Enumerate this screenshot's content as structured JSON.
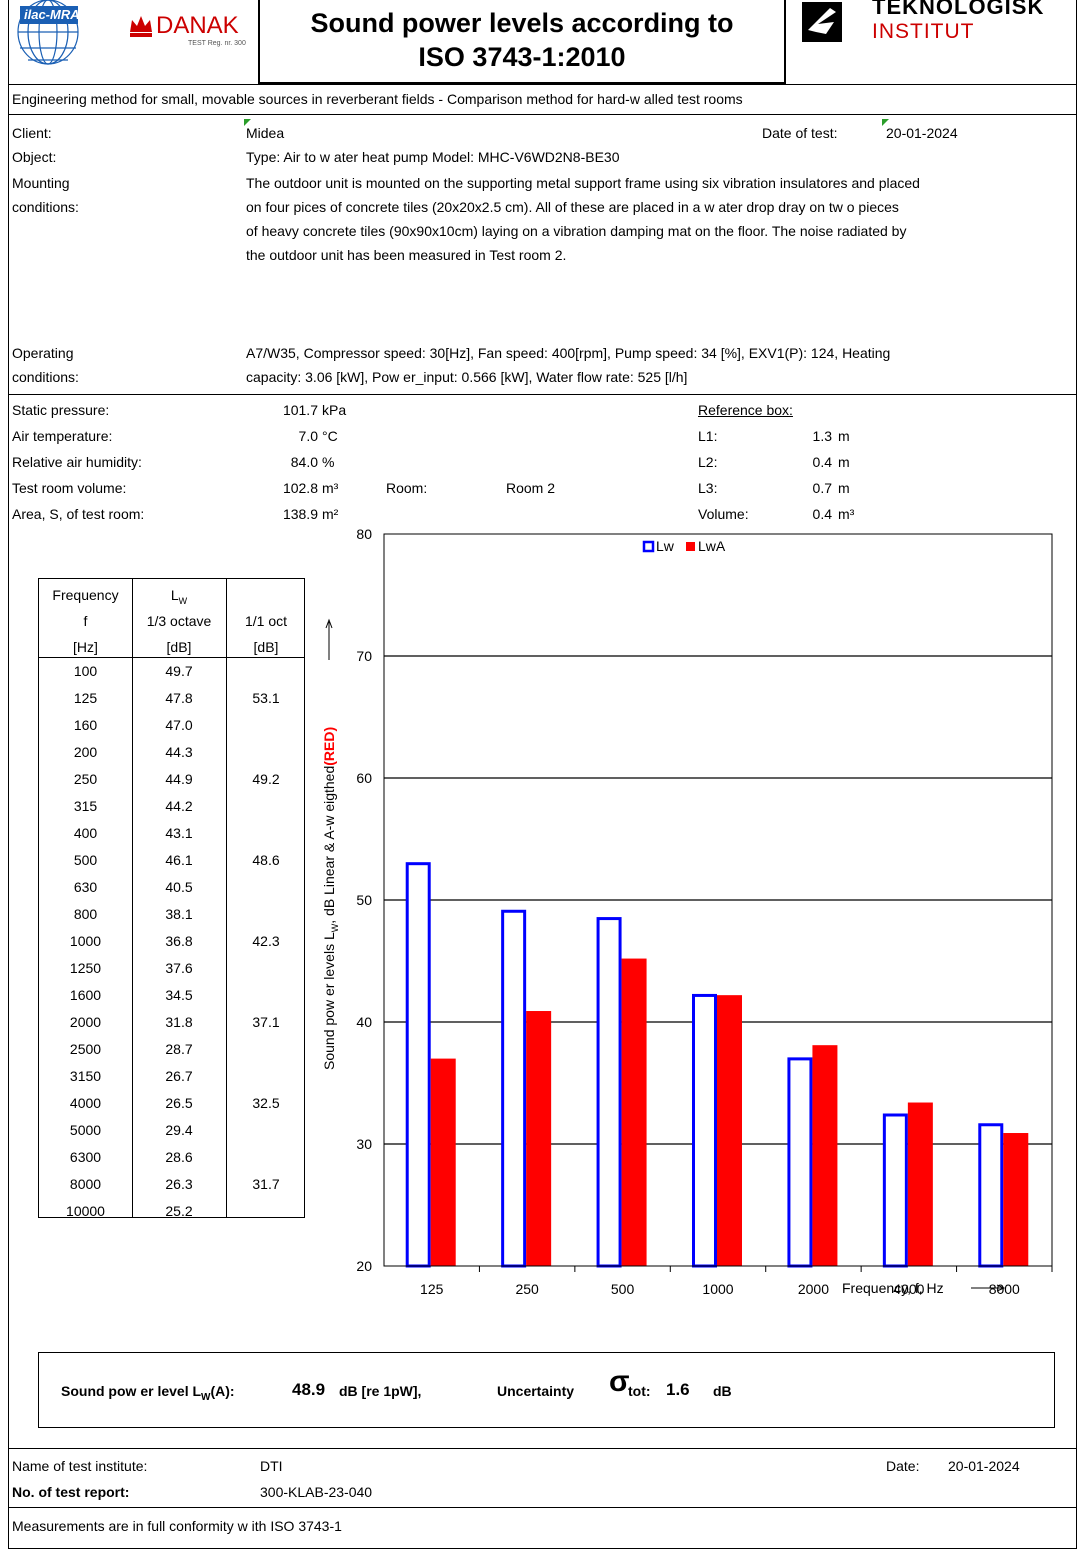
{
  "header": {
    "title_line1": "Sound power levels according to",
    "title_line2": "ISO 3743-1:2010",
    "ilac_logo": "ilac-MRA",
    "danak_logo": "DANAK",
    "danak_reg": "TEST Reg. nr. 300",
    "teknologisk_line1": "TEKNOLOGISK",
    "teknologisk_line2": "INSTITUT"
  },
  "subtitle": "Engineering method for small, movable sources in reverberant fields - Comparison method for hard-w alled test rooms",
  "client": {
    "label": "Client:",
    "value": "Midea",
    "date_label": "Date of test:",
    "date_value": "20-01-2024"
  },
  "object": {
    "label": "Object:",
    "value": "Type: Air to w ater heat pump Model: MHC-V6WD2N8-BE30"
  },
  "mounting": {
    "label1": "Mounting",
    "label2": "conditions:",
    "lines": [
      "The outdoor unit is mounted on the supporting metal support frame using six vibration insulatores and placed",
      "on four pices of concrete tiles (20x20x2.5 cm).  All of these are  placed  in a w ater drop dray on tw o pieces",
      "of heavy concrete tiles (90x90x10cm) laying on a vibration damping mat on the floor.  The noise radiated by",
      "the outdoor unit has been measured in Test room 2."
    ]
  },
  "operating": {
    "label1": "Operating",
    "label2": "conditions:",
    "lines": [
      "A7/W35, Compressor speed: 30[Hz], Fan speed: 400[rpm], Pump speed: 34 [%], EXV1(P): 124,  Heating",
      "capacity:  3.06 [kW], Pow er_input: 0.566 [kW], Water flow rate: 525 [l/h]"
    ]
  },
  "conditions": [
    {
      "label": "Static pressure:",
      "value": "101.7",
      "unit": "kPa"
    },
    {
      "label": "Air temperature:",
      "value": "7.0",
      "unit": "°C"
    },
    {
      "label": "Relative air humidity:",
      "value": "84.0",
      "unit": "%"
    },
    {
      "label": "Test room volume:",
      "value": "102.8",
      "unit": "m³"
    },
    {
      "label": "Area, S, of test room:",
      "value": "138.9",
      "unit": "m²"
    }
  ],
  "room": {
    "label": "Room:",
    "value": "Room 2"
  },
  "reference_box": {
    "title": "Reference box:",
    "rows": [
      {
        "label": "L1:",
        "value": "1.3",
        "unit": "m"
      },
      {
        "label": "L2:",
        "value": "0.4",
        "unit": "m"
      },
      {
        "label": "L3:",
        "value": "0.7",
        "unit": "m"
      },
      {
        "label": "Volume:",
        "value": "0.4",
        "unit": "m³"
      }
    ]
  },
  "table": {
    "headers": {
      "col1": [
        "Frequency",
        "f",
        "[Hz]"
      ],
      "col2_main": "L",
      "col2_sub": "W",
      "col2": [
        "1/3 octave",
        "[dB]"
      ],
      "col3": [
        "1/1 oct",
        "[dB]"
      ]
    },
    "rows": [
      {
        "f": "100",
        "third": "49.7",
        "oct": ""
      },
      {
        "f": "125",
        "third": "47.8",
        "oct": "53.1"
      },
      {
        "f": "160",
        "third": "47.0",
        "oct": ""
      },
      {
        "f": "200",
        "third": "44.3",
        "oct": ""
      },
      {
        "f": "250",
        "third": "44.9",
        "oct": "49.2"
      },
      {
        "f": "315",
        "third": "44.2",
        "oct": ""
      },
      {
        "f": "400",
        "third": "43.1",
        "oct": ""
      },
      {
        "f": "500",
        "third": "46.1",
        "oct": "48.6"
      },
      {
        "f": "630",
        "third": "40.5",
        "oct": ""
      },
      {
        "f": "800",
        "third": "38.1",
        "oct": ""
      },
      {
        "f": "1000",
        "third": "36.8",
        "oct": "42.3"
      },
      {
        "f": "1250",
        "third": "37.6",
        "oct": ""
      },
      {
        "f": "1600",
        "third": "34.5",
        "oct": ""
      },
      {
        "f": "2000",
        "third": "31.8",
        "oct": "37.1"
      },
      {
        "f": "2500",
        "third": "28.7",
        "oct": ""
      },
      {
        "f": "3150",
        "third": "26.7",
        "oct": ""
      },
      {
        "f": "4000",
        "third": "26.5",
        "oct": "32.5"
      },
      {
        "f": "5000",
        "third": "29.4",
        "oct": ""
      },
      {
        "f": "6300",
        "third": "28.6",
        "oct": ""
      },
      {
        "f": "8000",
        "third": "26.3",
        "oct": "31.7"
      },
      {
        "f": "10000",
        "third": "25.2",
        "oct": ""
      }
    ]
  },
  "chart_data": {
    "type": "bar",
    "categories": [
      "125",
      "250",
      "500",
      "1000",
      "2000",
      "4000",
      "8000"
    ],
    "series": [
      {
        "name": "Lw",
        "values": [
          53.1,
          49.2,
          48.6,
          42.3,
          37.1,
          32.5,
          31.7
        ],
        "style": "outline",
        "color": "#0000ff"
      },
      {
        "name": "LwA",
        "values": [
          37.0,
          40.9,
          45.2,
          42.2,
          38.1,
          33.4,
          30.9
        ],
        "style": "filled",
        "color": "#ff0000"
      }
    ],
    "title": "",
    "xlabel": "Frequency, f, Hz",
    "ylabel_prefix": "Sound pow er levels  L",
    "ylabel_sub": "W",
    "ylabel_mid": ",  dB Linear & A-w eigthed",
    "ylabel_red": "(RED)",
    "ylim": [
      20,
      80
    ],
    "yticks": [
      20,
      30,
      40,
      50,
      60,
      70,
      80
    ],
    "grid": true,
    "legend": "top-center"
  },
  "summary": {
    "label_prefix": "Sound pow er level L",
    "label_sub": "W",
    "label_suffix": "(A):",
    "value": "48.9",
    "unit": "dB  [re 1pW],",
    "uncertainty_label": "Uncertainty",
    "sigma": "σ",
    "tot_label": "tot:",
    "uncertainty_value": "1.6",
    "uncertainty_unit": "dB"
  },
  "footer": {
    "institute_label": "Name of test institute:",
    "institute_value": "DTI",
    "date_label": "Date:",
    "date_value": "20-01-2024",
    "report_label": "No. of test report:",
    "report_value": "300-KLAB-23-040",
    "conformity": "Measurements are in full conformity w ith ISO 3743-1"
  },
  "colors": {
    "lw": "#0000ff",
    "lwa": "#ff0000",
    "danak": "#cc0000",
    "ilac": "#1a5fb4"
  }
}
